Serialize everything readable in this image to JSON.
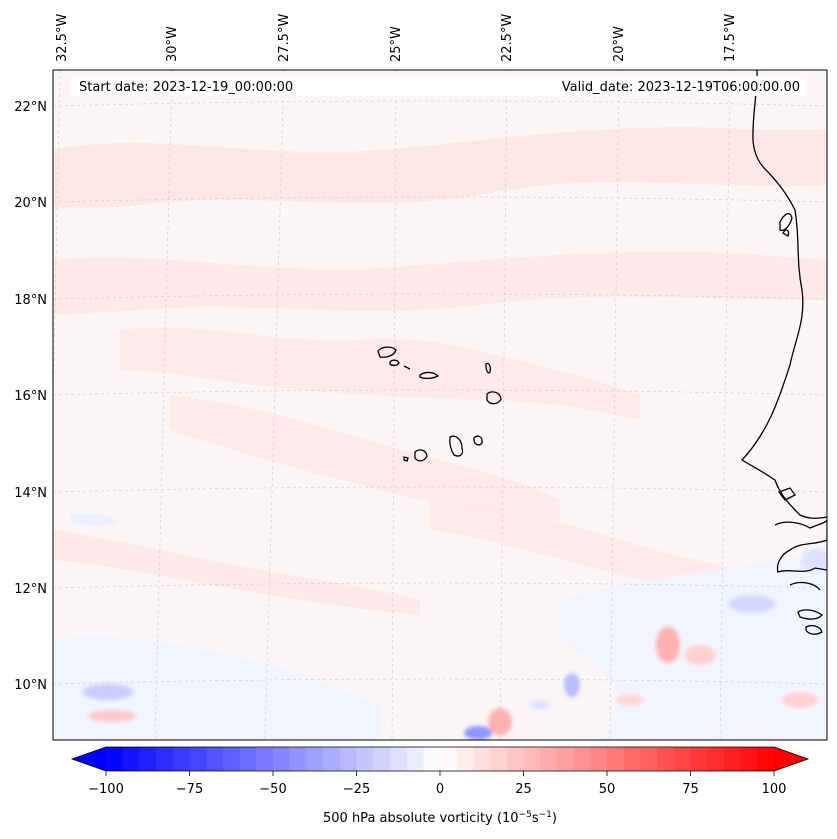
{
  "map": {
    "start_label": "Start date: 2023-12-19_00:00:00",
    "valid_label": "Valid_date: 2023-12-19T06:00:00.00",
    "lon_labels": [
      "32.5°W",
      "30°W",
      "27.5°W",
      "25°W",
      "22.5°W",
      "20°W",
      "17.5°W"
    ],
    "lat_labels": [
      "22°N",
      "20°N",
      "18°N",
      "16°N",
      "14°N",
      "12°N",
      "10°N"
    ],
    "extent": {
      "lon_min": -33.0,
      "lon_max": -15.5,
      "lat_min": 8.9,
      "lat_max": 22.8
    },
    "gridlines": true,
    "coastlines": true,
    "field_colors": {
      "near_zero": "#fdf6f6",
      "light_red": "#fde6e6",
      "light_blue": "#ecf0ff",
      "blue": "#b7bcff",
      "red": "#ffb0b0"
    }
  },
  "colorbar": {
    "title_prefix": "500 hPa absolute vorticity (10",
    "title_exp1": "−5",
    "title_mid": "s",
    "title_exp2": "−1",
    "title_suffix": ")",
    "ticks": [
      "−100",
      "−75",
      "−50",
      "−25",
      "0",
      "25",
      "50",
      "75",
      "100"
    ],
    "vmin": -100,
    "vmax": 100,
    "step": 5,
    "extend": "both",
    "cmap": "bwr",
    "min_color": "#0000ff",
    "mid_color": "#ffffff",
    "max_color": "#ff0000"
  }
}
